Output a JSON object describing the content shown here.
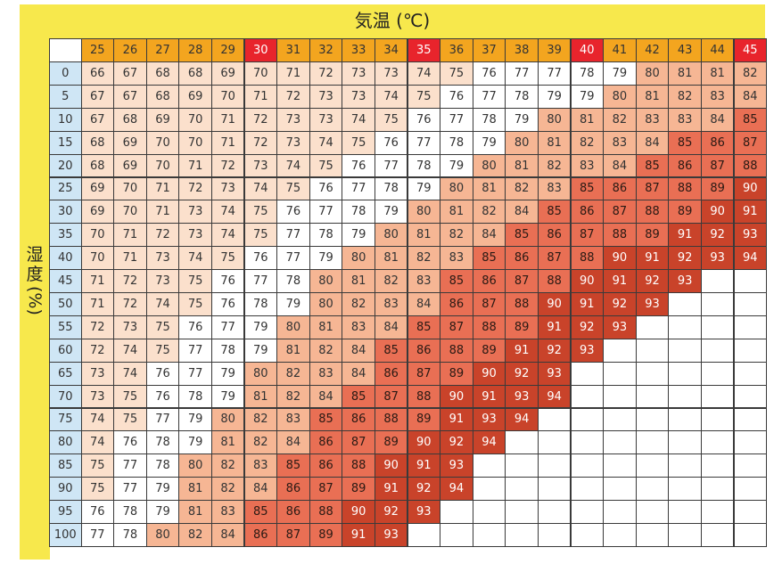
{
  "chart_data": {
    "type": "heatmap",
    "title": "気温 (℃)",
    "ylabel": "湿度(%)",
    "columns": [
      25,
      26,
      27,
      28,
      29,
      30,
      31,
      32,
      33,
      34,
      35,
      36,
      37,
      38,
      39,
      40,
      41,
      42,
      43,
      44,
      45
    ],
    "highlight_columns": [
      30,
      35,
      40,
      45
    ],
    "rows": [
      0,
      5,
      10,
      15,
      20,
      25,
      30,
      35,
      40,
      45,
      50,
      55,
      60,
      65,
      70,
      75,
      80,
      85,
      90,
      95,
      100
    ],
    "values": [
      [
        66,
        67,
        68,
        68,
        69,
        70,
        71,
        72,
        73,
        73,
        74,
        75,
        76,
        77,
        77,
        78,
        79,
        80,
        81,
        81,
        82
      ],
      [
        67,
        67,
        68,
        69,
        70,
        71,
        72,
        73,
        73,
        74,
        75,
        76,
        77,
        78,
        79,
        79,
        80,
        81,
        82,
        83,
        84
      ],
      [
        67,
        68,
        69,
        70,
        71,
        72,
        73,
        73,
        74,
        75,
        76,
        77,
        78,
        79,
        80,
        81,
        82,
        83,
        83,
        84,
        85
      ],
      [
        68,
        69,
        70,
        70,
        71,
        72,
        73,
        74,
        75,
        76,
        77,
        78,
        79,
        80,
        81,
        82,
        83,
        84,
        85,
        86,
        87
      ],
      [
        68,
        69,
        70,
        71,
        72,
        73,
        74,
        75,
        76,
        77,
        78,
        79,
        80,
        81,
        82,
        83,
        84,
        85,
        86,
        87,
        88
      ],
      [
        69,
        70,
        71,
        72,
        73,
        74,
        75,
        76,
        77,
        78,
        79,
        80,
        81,
        82,
        83,
        85,
        86,
        87,
        88,
        89,
        90
      ],
      [
        69,
        70,
        71,
        73,
        74,
        75,
        76,
        77,
        78,
        79,
        80,
        81,
        82,
        84,
        85,
        86,
        87,
        88,
        89,
        90,
        91
      ],
      [
        70,
        71,
        72,
        73,
        74,
        75,
        77,
        78,
        79,
        80,
        81,
        82,
        84,
        85,
        86,
        87,
        88,
        89,
        91,
        92,
        93
      ],
      [
        70,
        71,
        73,
        74,
        75,
        76,
        77,
        79,
        80,
        81,
        82,
        83,
        85,
        86,
        87,
        88,
        90,
        91,
        92,
        93,
        94
      ],
      [
        71,
        72,
        73,
        75,
        76,
        77,
        78,
        80,
        81,
        82,
        83,
        85,
        86,
        87,
        88,
        90,
        91,
        92,
        93
      ],
      [
        71,
        72,
        74,
        75,
        76,
        78,
        79,
        80,
        82,
        83,
        84,
        86,
        87,
        88,
        90,
        91,
        92,
        93
      ],
      [
        72,
        73,
        75,
        76,
        77,
        79,
        80,
        81,
        83,
        84,
        85,
        87,
        88,
        89,
        91,
        92,
        93
      ],
      [
        72,
        74,
        75,
        77,
        78,
        79,
        81,
        82,
        84,
        85,
        86,
        88,
        89,
        91,
        92,
        93
      ],
      [
        73,
        74,
        76,
        77,
        79,
        80,
        82,
        83,
        84,
        86,
        87,
        89,
        90,
        92,
        93
      ],
      [
        73,
        75,
        76,
        78,
        79,
        81,
        82,
        84,
        85,
        87,
        88,
        90,
        91,
        93,
        94
      ],
      [
        74,
        75,
        77,
        79,
        80,
        82,
        83,
        85,
        86,
        88,
        89,
        91,
        93,
        94
      ],
      [
        74,
        76,
        78,
        79,
        81,
        82,
        84,
        86,
        87,
        89,
        90,
        92,
        94
      ],
      [
        75,
        77,
        78,
        80,
        82,
        83,
        85,
        86,
        88,
        90,
        91,
        93
      ],
      [
        75,
        77,
        79,
        81,
        82,
        84,
        86,
        87,
        89,
        91,
        92,
        94
      ],
      [
        76,
        78,
        79,
        81,
        83,
        85,
        86,
        88,
        90,
        92,
        93
      ],
      [
        77,
        78,
        80,
        82,
        84,
        86,
        87,
        89,
        91,
        93
      ]
    ],
    "colors": {
      "header_fill": "#f3a51f",
      "header_highlight": "#e8242c",
      "row_header_fill": "#cfe6f5",
      "band_below_80": "#fbe0cc",
      "band_80_84": "#f6b694",
      "band_85_89": "#e96f54",
      "band_90_plus": "#c9432a",
      "plain": "#ffffff"
    }
  }
}
